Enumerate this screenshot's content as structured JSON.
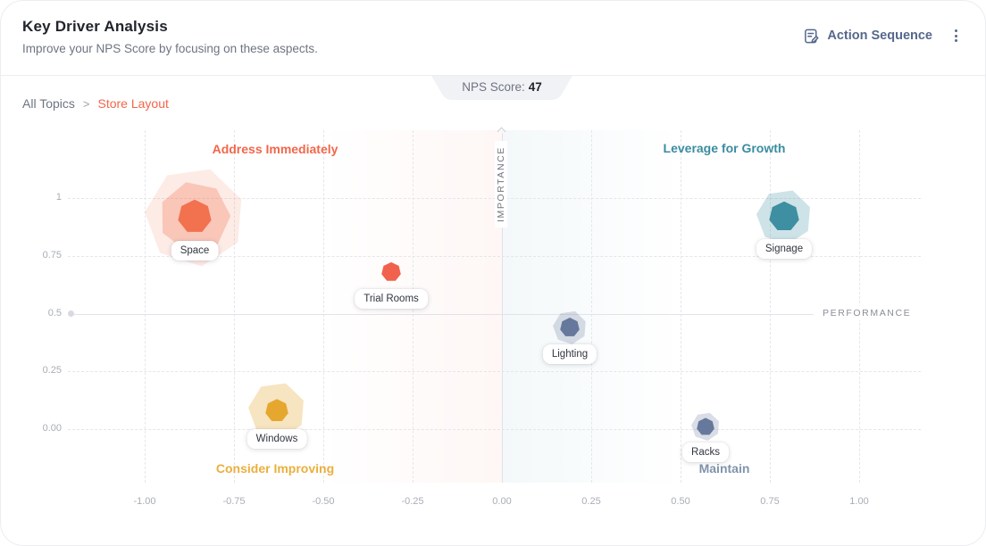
{
  "header": {
    "title": "Key Driver Analysis",
    "subtitle": "Improve your NPS Score by focusing on these aspects.",
    "action_button_label": "Action Sequence",
    "nps_badge": {
      "label": "NPS Score:",
      "value": "47"
    }
  },
  "breadcrumb": {
    "root": "All Topics",
    "separator": ">",
    "current": "Store Layout"
  },
  "chart_data": {
    "type": "scatter",
    "title": "Key Driver Analysis",
    "xlabel": "PERFORMANCE",
    "ylabel": "IMPORTANCE",
    "x_ticks": [
      "-1.00",
      "-0.75",
      "-0.50",
      "-0.25",
      "0.00",
      "0.25",
      "0.50",
      "0.75",
      "1.00"
    ],
    "y_ticks": [
      "1",
      "0.75",
      "0.5",
      "0.25",
      "0.00"
    ],
    "xlim": [
      -1.1,
      1.15
    ],
    "ylim": [
      -0.28,
      1.3
    ],
    "grid": "dashed",
    "axes_cross_at": {
      "x": 0,
      "y": 0.5
    },
    "quadrants": [
      {
        "label": "Address Immediately",
        "color": "#f2664a",
        "position": "top-left"
      },
      {
        "label": "Leverage for Growth",
        "color": "#3b8ca1",
        "position": "top-right"
      },
      {
        "label": "Consider Improving",
        "color": "#eaaf3e",
        "position": "bottom-left"
      },
      {
        "label": "Maintain",
        "color": "#8093ac",
        "position": "bottom-right"
      }
    ],
    "points": [
      {
        "label": "Space",
        "x": -0.86,
        "y": 0.92,
        "color": "#f2714e",
        "size": 38,
        "halos": [
          {
            "size": 112,
            "opacity": 0.14
          },
          {
            "size": 80,
            "opacity": 0.3
          }
        ]
      },
      {
        "label": "Trial Rooms",
        "x": -0.31,
        "y": 0.68,
        "color": "#f0624d",
        "size": 22,
        "halos": []
      },
      {
        "label": "Signage",
        "x": 0.79,
        "y": 0.92,
        "color": "#3d8fa1",
        "size": 34,
        "halos": [
          {
            "size": 62,
            "opacity": 0.25
          }
        ]
      },
      {
        "label": "Lighting",
        "x": 0.19,
        "y": 0.44,
        "color": "#66789b",
        "size": 22,
        "halos": [
          {
            "size": 38,
            "opacity": 0.25
          }
        ]
      },
      {
        "label": "Windows",
        "x": -0.63,
        "y": 0.08,
        "color": "#e6a72e",
        "size": 26,
        "halos": [
          {
            "size": 64,
            "opacity": 0.3
          }
        ]
      },
      {
        "label": "Racks",
        "x": 0.57,
        "y": 0.01,
        "color": "#66789b",
        "size": 20,
        "halos": [
          {
            "size": 32,
            "opacity": 0.25
          }
        ]
      }
    ]
  }
}
